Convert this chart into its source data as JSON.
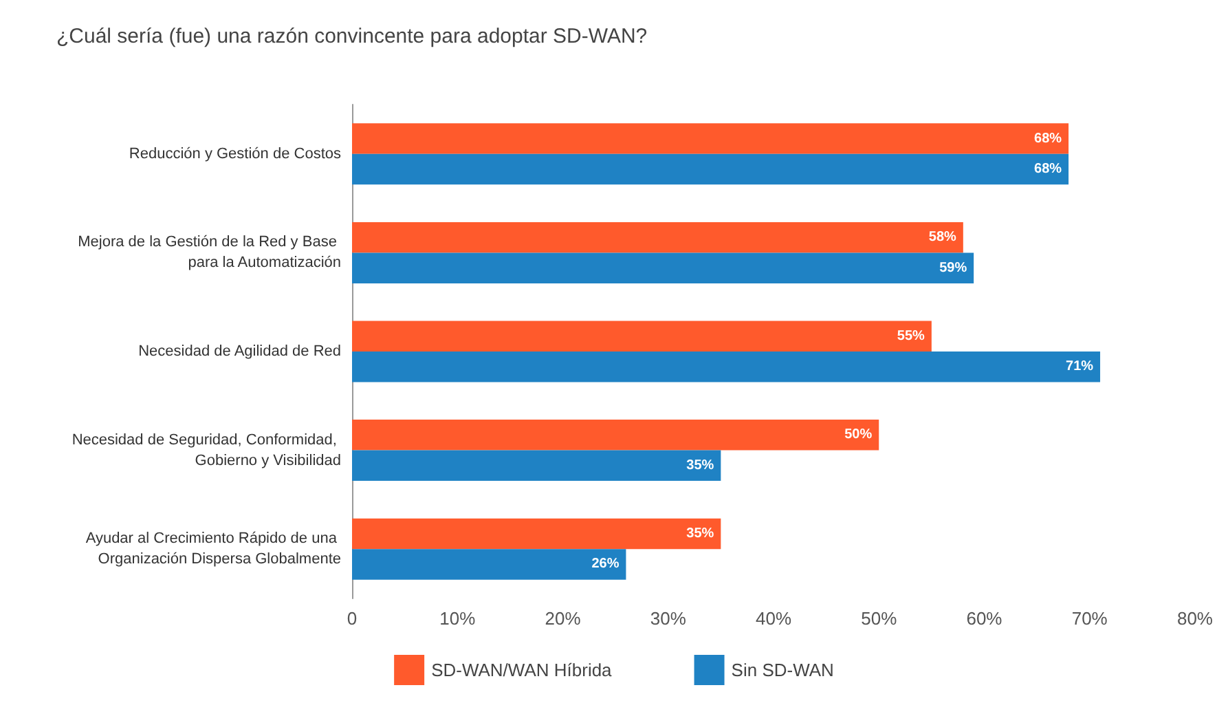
{
  "chart_data": {
    "type": "bar",
    "orientation": "horizontal",
    "title": "¿Cuál sería (fue) una razón convincente para adoptar SD-WAN?",
    "categories": [
      "Reducción y Gestión de Costos",
      "Mejora de la Gestión de la Red y Base para la Automatización",
      "Necesidad de Agilidad de Red",
      "Necesidad de Seguridad, Conformidad, Gobierno y Visibilidad",
      "Ayudar al Crecimiento Rápido de una Organización Dispersa Globalmente"
    ],
    "series": [
      {
        "name": "SD-WAN/WAN Híbrida",
        "color": "#ff5a2c",
        "values": [
          68,
          58,
          55,
          50,
          35
        ],
        "value_labels": [
          "68%",
          "58%",
          "55%",
          "50%",
          "35%"
        ]
      },
      {
        "name": "Sin SD-WAN",
        "color": "#1f82c4",
        "values": [
          68,
          59,
          71,
          35,
          26
        ],
        "value_labels": [
          "68%",
          "59%",
          "71%",
          "35%",
          "26%"
        ]
      }
    ],
    "xlim": [
      0,
      80
    ],
    "xticks": [
      0,
      {
        "value": 10,
        "label": "10%"
      },
      {
        "value": 20,
        "label": "20%"
      },
      {
        "value": 30,
        "label": "30%"
      },
      {
        "value": 40,
        "label": "40%"
      },
      {
        "value": 50,
        "label": "50%"
      },
      {
        "value": 60,
        "label": "60%"
      },
      {
        "value": 70,
        "label": "70%"
      },
      {
        "value": 80,
        "label": "80%"
      }
    ],
    "grid": false,
    "legend": "bottom"
  }
}
